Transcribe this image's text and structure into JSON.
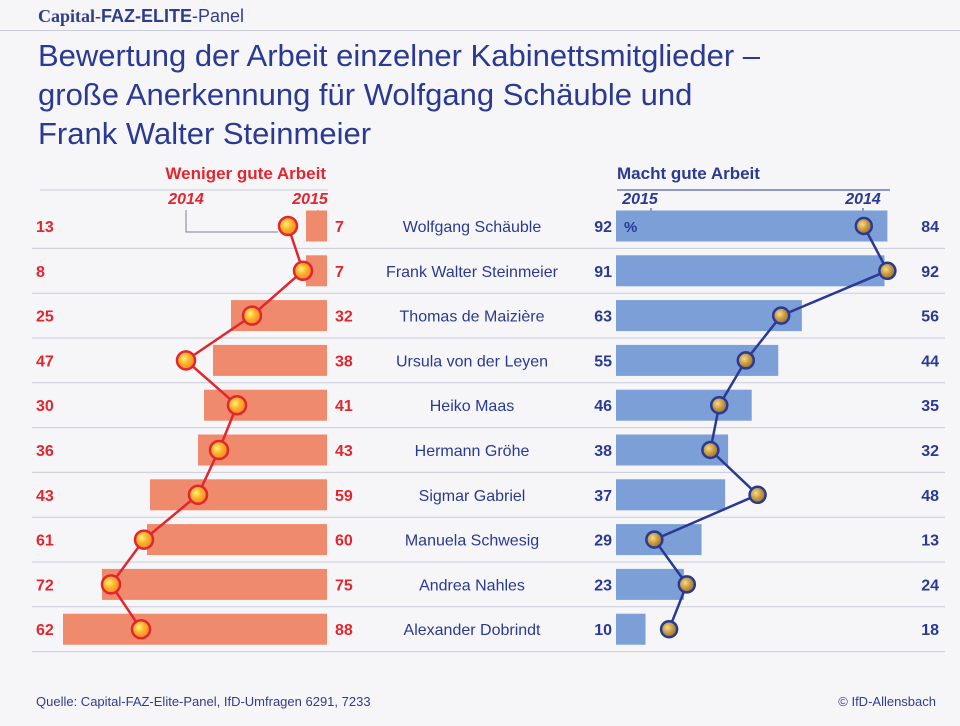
{
  "brand": {
    "part1": "Capital-",
    "part2": "FAZ-ELITE",
    "part3": "-Panel"
  },
  "title": {
    "line1": "Bewertung der Arbeit einzelner Kabinettsmitglieder –",
    "line2": "große Anerkennung für Wolfgang Schäuble und",
    "line3": "Frank Walter Steinmeier"
  },
  "footer": {
    "source": "Quelle: Capital-FAZ-Elite-Panel, IfD-Umfragen 6291, 7233",
    "copyright": "© IfD-Allensbach"
  },
  "chart_data": {
    "type": "bar",
    "orientation": "horizontal",
    "unit": "%",
    "unit_label": "%",
    "left_panel": {
      "title": "Weniger gute Arbeit",
      "bar_series": "2015",
      "marker_series": "2014",
      "year_label_bar": "2015",
      "year_label_marker": "2014",
      "color_bar": "#f08a6c",
      "color_line": "#e3262e"
    },
    "right_panel": {
      "title": "Macht gute Arbeit",
      "bar_series": "2015",
      "marker_series": "2014",
      "year_label_bar": "2015",
      "year_label_marker": "2014",
      "color_bar": "#7b9fd6",
      "color_line": "#2a3a94"
    },
    "categories": [
      "Wolfgang Schäuble",
      "Frank Walter Steinmeier",
      "Thomas de Maizière",
      "Ursula von der Leyen",
      "Heiko Maas",
      "Hermann Gröhe",
      "Sigmar Gabriel",
      "Manuela Schwesig",
      "Andrea Nahles",
      "Alexander Dobrindt"
    ],
    "series": [
      {
        "name": "Weniger gute Arbeit 2014",
        "values": [
          13,
          8,
          25,
          47,
          30,
          36,
          43,
          61,
          72,
          62
        ]
      },
      {
        "name": "Weniger gute Arbeit 2015",
        "values": [
          7,
          7,
          32,
          38,
          41,
          43,
          59,
          60,
          75,
          88
        ]
      },
      {
        "name": "Macht gute Arbeit 2015",
        "values": [
          92,
          91,
          63,
          55,
          46,
          38,
          37,
          29,
          23,
          10
        ]
      },
      {
        "name": "Macht gute Arbeit 2014",
        "values": [
          84,
          92,
          56,
          44,
          35,
          32,
          48,
          13,
          24,
          18
        ]
      }
    ],
    "xlim": [
      0,
      100
    ]
  }
}
